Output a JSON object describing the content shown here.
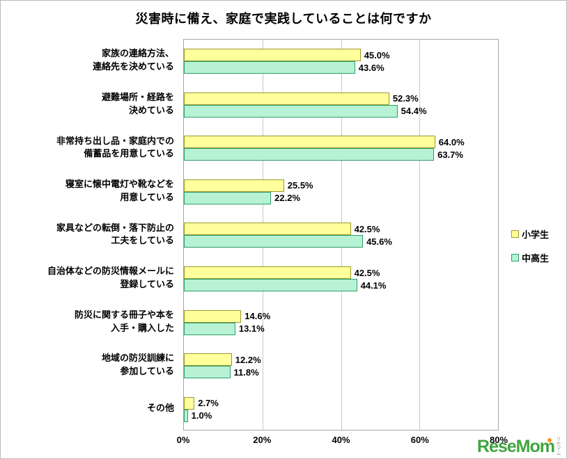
{
  "chart_data": {
    "type": "bar",
    "orientation": "horizontal",
    "title": "災害時に備え、家庭で実践していることは何ですか",
    "categories": [
      "家族の連絡方法、\n連絡先を決めている",
      "避難場所・経路を\n決めている",
      "非常持ち出し品・家庭内での\n備蓄品を用意している",
      "寝室に懐中電灯や靴などを\n用意している",
      "家具などの転倒・落下防止の\n工夫をしている",
      "自治体などの防災情報メールに\n登録している",
      "防災に関する冊子や本を\n入手・購入した",
      "地域の防災訓練に\n参加している",
      "その他"
    ],
    "series": [
      {
        "name": "小学生",
        "fill": "#FFFF9C",
        "border": "#99992E",
        "values": [
          45.0,
          52.3,
          64.0,
          25.5,
          42.5,
          42.5,
          14.6,
          12.2,
          2.7
        ]
      },
      {
        "name": "中高生",
        "fill": "#B7F2D4",
        "border": "#2F9E6B",
        "values": [
          43.6,
          54.4,
          63.7,
          22.2,
          45.6,
          44.1,
          13.1,
          11.8,
          1.0
        ]
      }
    ],
    "xlim": [
      0,
      80
    ],
    "xticks": [
      "0%",
      "20%",
      "40%",
      "60%",
      "80%"
    ],
    "legend_position": "right",
    "grid": "vertical"
  },
  "watermark": {
    "text": "ReseMom",
    "subtext": "リセマム",
    "color": "#3FA53F",
    "dot_color": "#F7941D"
  }
}
